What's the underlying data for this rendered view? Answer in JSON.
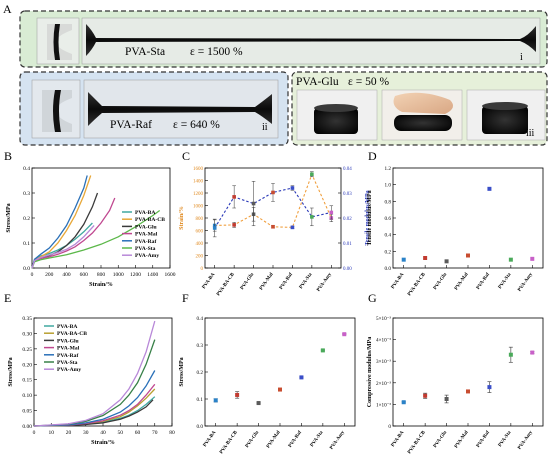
{
  "panel_letters": {
    "a": "A",
    "b": "B",
    "c": "C",
    "d": "D",
    "e": "E",
    "f": "F",
    "g": "G"
  },
  "panel_a": {
    "photo_i": {
      "label": "PVA-Sta",
      "strain": "ε = 1500 %",
      "roman": "i"
    },
    "photo_ii": {
      "label": "PVA-Raf",
      "strain": "ε = 640 %",
      "roman": "ii"
    },
    "photo_iii": {
      "label": "PVA-Glu",
      "strain": "ε = 50 %",
      "roman": "iii"
    },
    "colors": {
      "bg_i": "#d9ecd4",
      "bg_ii": "#d5e3f1",
      "bg_iii": "#e6f0da"
    }
  },
  "chart_data": [
    {
      "panel": "B",
      "type": "line",
      "xlabel": "Strain/%",
      "ylabel": "Stress/MPa",
      "xlim": [
        0,
        1600
      ],
      "ylim": [
        0,
        0.4
      ],
      "xticks": [
        "0",
        "200",
        "400",
        "600",
        "800",
        "1000",
        "1200",
        "1400",
        "1600"
      ],
      "yticks": [
        "0.0",
        "0.1",
        "0.2",
        "0.3",
        "0.4"
      ],
      "legend": "right",
      "series": [
        {
          "name": "PVA-BA",
          "color": "#40a8a0",
          "x": [
            0,
            30,
            100,
            200,
            300,
            400,
            500,
            600,
            700
          ],
          "y": [
            0,
            0.035,
            0.048,
            0.058,
            0.072,
            0.09,
            0.115,
            0.145,
            0.18
          ]
        },
        {
          "name": "PVA-BA-CB",
          "color": "#e8a838",
          "x": [
            0,
            30,
            100,
            200,
            300,
            400,
            500,
            600,
            680
          ],
          "y": [
            0,
            0.03,
            0.045,
            0.065,
            0.1,
            0.15,
            0.21,
            0.29,
            0.37
          ]
        },
        {
          "name": "PVA-Glu",
          "color": "#3a3a3a",
          "x": [
            0,
            30,
            100,
            200,
            300,
            400,
            500,
            600,
            700,
            760
          ],
          "y": [
            0,
            0.03,
            0.04,
            0.05,
            0.065,
            0.09,
            0.125,
            0.175,
            0.245,
            0.3
          ]
        },
        {
          "name": "PVA-Mal",
          "color": "#c04890",
          "x": [
            0,
            30,
            100,
            200,
            300,
            400,
            500,
            600,
            700,
            800,
            900,
            960
          ],
          "y": [
            0,
            0.03,
            0.038,
            0.045,
            0.055,
            0.068,
            0.085,
            0.11,
            0.14,
            0.18,
            0.23,
            0.28
          ]
        },
        {
          "name": "PVA-Raf",
          "color": "#2a70b8",
          "x": [
            0,
            30,
            100,
            200,
            300,
            400,
            500,
            600,
            640
          ],
          "y": [
            0,
            0.035,
            0.055,
            0.08,
            0.12,
            0.17,
            0.24,
            0.32,
            0.37
          ]
        },
        {
          "name": "PVA-Sta",
          "color": "#5cb84a",
          "x": [
            0,
            30,
            100,
            200,
            400,
            600,
            800,
            1000,
            1200,
            1400,
            1480
          ],
          "y": [
            0,
            0.025,
            0.033,
            0.04,
            0.053,
            0.072,
            0.095,
            0.125,
            0.165,
            0.21,
            0.23
          ]
        },
        {
          "name": "PVA-Amy",
          "color": "#b888d8",
          "x": [
            0,
            30,
            100,
            200,
            300,
            400,
            500,
            600,
            720
          ],
          "y": [
            0,
            0.03,
            0.042,
            0.052,
            0.062,
            0.075,
            0.095,
            0.125,
            0.17
          ]
        }
      ]
    },
    {
      "panel": "C",
      "type": "line",
      "xlabel": "",
      "ylabel": "Strain/%",
      "y2label": "Tensile modulus/MPa",
      "categories": [
        "PVA-BA",
        "PVA-BA-CB",
        "PVA-Glu",
        "PVA-Mal",
        "PVA-Raf",
        "PVA-Sta",
        "PVA-Amy"
      ],
      "ylim": [
        0,
        1600
      ],
      "y2lim": [
        0,
        0.045
      ],
      "yticks": [
        "0",
        "200",
        "400",
        "600",
        "800",
        "1000",
        "1200",
        "1400",
        "1600"
      ],
      "y2ticks": [
        "0.00",
        "0.01",
        "0.02",
        "0.03",
        "0.04"
      ],
      "series": [
        {
          "axis": "left",
          "color": "#f0a040",
          "values": [
            680,
            690,
            860,
            660,
            650,
            1500,
            800
          ],
          "errors": [
            90,
            40,
            110,
            20,
            20,
            40,
            60
          ]
        },
        {
          "axis": "right",
          "color": "#2b3ab8",
          "values": [
            0.018,
            0.032,
            0.029,
            0.034,
            0.036,
            0.023,
            0.025
          ],
          "errors": [
            0.004,
            0.005,
            0.01,
            0.004,
            0.001,
            0.004,
            0.003
          ]
        }
      ],
      "marker_colors": [
        "#2a82c8",
        "#c23b30",
        "#5a5a5a",
        "#c84d30",
        "#3a4ec8",
        "#4aaa5a",
        "#c860c8"
      ]
    },
    {
      "panel": "D",
      "type": "scatter",
      "ylabel": "Tensile modulus/MPa",
      "categories": [
        "PVA-BA",
        "PVA-BA-CB",
        "PVA-Glu",
        "PVA-Mal",
        "PVA-Raf",
        "PVA-Sta",
        "PVA-Amy"
      ],
      "ylim": [
        0,
        1.2
      ],
      "yticks": [
        "0.0",
        "0.2",
        "0.4",
        "0.6",
        "0.8",
        "1.0",
        "1.2"
      ],
      "values": [
        0.1,
        0.12,
        0.08,
        0.15,
        0.95,
        0.1,
        0.11
      ],
      "colors": [
        "#2a82c8",
        "#c23b30",
        "#5a5a5a",
        "#c84d30",
        "#3a4ec8",
        "#4aaa5a",
        "#c860c8"
      ]
    },
    {
      "panel": "E",
      "type": "line",
      "xlabel": "Strain/%",
      "ylabel": "Stress/MPa",
      "xlim": [
        0,
        80
      ],
      "ylim": [
        0,
        0.35
      ],
      "xticks": [
        "0",
        "10",
        "20",
        "30",
        "40",
        "50",
        "60",
        "70",
        "80"
      ],
      "yticks": [
        "0.00",
        "0.05",
        "0.10",
        "0.15",
        "0.20",
        "0.25",
        "0.30",
        "0.35"
      ],
      "legend": "top-left",
      "series": [
        {
          "name": "PVA-BA",
          "color": "#40a8a0",
          "x": [
            0,
            20,
            30,
            40,
            50,
            55,
            60,
            65,
            70
          ],
          "y": [
            0,
            0.002,
            0.006,
            0.012,
            0.025,
            0.035,
            0.05,
            0.07,
            0.095
          ]
        },
        {
          "name": "PVA-BA-CB",
          "color": "#b8a030",
          "x": [
            0,
            20,
            30,
            40,
            50,
            55,
            60,
            65,
            70
          ],
          "y": [
            0,
            0.002,
            0.007,
            0.015,
            0.03,
            0.045,
            0.065,
            0.09,
            0.12
          ]
        },
        {
          "name": "PVA-Glu",
          "color": "#3a3a3a",
          "x": [
            0,
            20,
            30,
            40,
            50,
            55,
            60,
            65,
            69
          ],
          "y": [
            0,
            0.002,
            0.005,
            0.01,
            0.022,
            0.032,
            0.045,
            0.062,
            0.085
          ]
        },
        {
          "name": "PVA-Mal",
          "color": "#c04890",
          "x": [
            0,
            20,
            30,
            40,
            50,
            55,
            60,
            65,
            70
          ],
          "y": [
            0,
            0.003,
            0.008,
            0.017,
            0.035,
            0.05,
            0.07,
            0.1,
            0.135
          ]
        },
        {
          "name": "PVA-Raf",
          "color": "#2a70b8",
          "x": [
            0,
            20,
            30,
            40,
            50,
            55,
            60,
            65,
            70
          ],
          "y": [
            0,
            0.004,
            0.01,
            0.022,
            0.045,
            0.065,
            0.092,
            0.13,
            0.18
          ]
        },
        {
          "name": "PVA-Sta",
          "color": "#388048",
          "x": [
            0,
            20,
            30,
            40,
            50,
            55,
            60,
            65,
            70
          ],
          "y": [
            0,
            0.006,
            0.015,
            0.034,
            0.07,
            0.1,
            0.14,
            0.2,
            0.28
          ]
        },
        {
          "name": "PVA-Amy",
          "color": "#b888d8",
          "x": [
            0,
            20,
            30,
            40,
            50,
            55,
            60,
            65,
            70
          ],
          "y": [
            0,
            0.007,
            0.018,
            0.04,
            0.085,
            0.12,
            0.17,
            0.24,
            0.34
          ]
        }
      ]
    },
    {
      "panel": "F",
      "type": "scatter",
      "ylabel": "Stress/MPa",
      "categories": [
        "PVA-BA",
        "PVA-BA-CB",
        "PVA-Glu",
        "PVA-Mal",
        "PVA-Raf",
        "PVA-Sta",
        "PVA-Amy"
      ],
      "ylim": [
        0,
        0.4
      ],
      "yticks": [
        "0.0",
        "0.1",
        "0.2",
        "0.3",
        "0.4"
      ],
      "values": [
        0.095,
        0.115,
        0.085,
        0.135,
        0.18,
        0.28,
        0.34
      ],
      "errors": [
        0.006,
        0.012,
        0.002,
        0.003,
        0.002,
        0.002,
        0.002
      ],
      "colors": [
        "#2a82c8",
        "#c23b30",
        "#5a5a5a",
        "#c84d30",
        "#3a4ec8",
        "#4aaa5a",
        "#c860c8"
      ]
    },
    {
      "panel": "G",
      "type": "scatter",
      "ylabel": "Compressive modulus/MPa",
      "categories": [
        "PVA-BA",
        "PVA-BA-CB",
        "PVA-Glu",
        "PVA-Mal",
        "PVA-Raf",
        "PVA-Sta",
        "PVA-Amy"
      ],
      "ylim": [
        0,
        0.005
      ],
      "yticks": [
        "0",
        "1×10⁻³",
        "2×10⁻³",
        "3×10⁻³",
        "4×10⁻³",
        "5×10⁻³"
      ],
      "values": [
        0.0011,
        0.0014,
        0.00125,
        0.0016,
        0.0018,
        0.0033,
        0.0034
      ],
      "errors": [
        3e-05,
        0.00012,
        0.00018,
        5e-05,
        0.00025,
        0.00035,
        4e-05
      ],
      "colors": [
        "#2a82c8",
        "#c23b30",
        "#5a5a5a",
        "#c84d30",
        "#3a4ec8",
        "#4aaa5a",
        "#c860c8"
      ]
    }
  ]
}
